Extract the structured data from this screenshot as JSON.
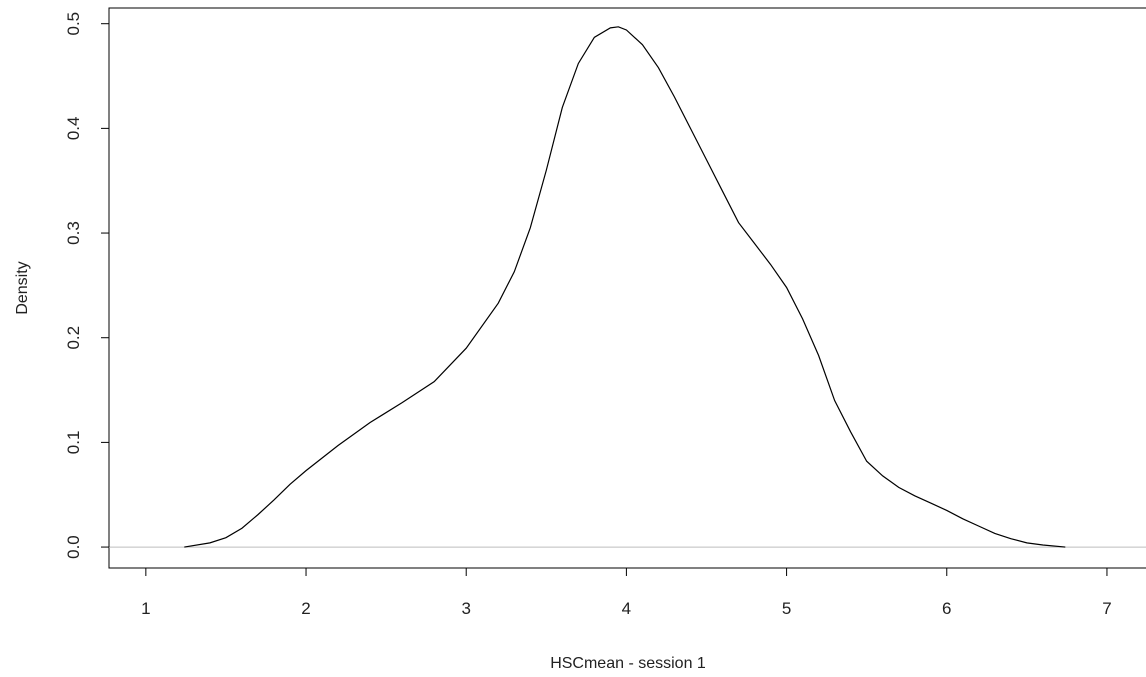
{
  "chart_data": {
    "type": "line",
    "title": "",
    "xlabel": "HSCmean - session 1",
    "ylabel": "Density",
    "xlim": [
      0.77,
      7.25
    ],
    "ylim": [
      -0.02,
      0.515
    ],
    "x_ticks": [
      1,
      2,
      3,
      4,
      5,
      6,
      7
    ],
    "x_tick_labels": [
      "1",
      "2",
      "3",
      "4",
      "5",
      "6",
      "7"
    ],
    "y_ticks": [
      0.0,
      0.1,
      0.2,
      0.3,
      0.4,
      0.5
    ],
    "y_tick_labels": [
      "0.0",
      "0.1",
      "0.2",
      "0.3",
      "0.4",
      "0.5"
    ],
    "grid": false,
    "legend": "none",
    "baseline": {
      "y": 0,
      "color": "#bebebe"
    },
    "line_color": "#000000",
    "series": [
      {
        "x": [
          1.24,
          1.4,
          1.5,
          1.6,
          1.7,
          1.8,
          1.9,
          2.0,
          2.2,
          2.4,
          2.6,
          2.8,
          3.0,
          3.2,
          3.3,
          3.4,
          3.5,
          3.6,
          3.7,
          3.8,
          3.9,
          3.95,
          4.0,
          4.1,
          4.2,
          4.3,
          4.4,
          4.5,
          4.6,
          4.7,
          4.8,
          4.9,
          5.0,
          5.1,
          5.2,
          5.3,
          5.4,
          5.5,
          5.6,
          5.7,
          5.8,
          5.9,
          6.0,
          6.1,
          6.2,
          6.3,
          6.4,
          6.5,
          6.6,
          6.74
        ],
        "y": [
          0.0,
          0.004,
          0.009,
          0.018,
          0.031,
          0.045,
          0.06,
          0.073,
          0.097,
          0.119,
          0.138,
          0.158,
          0.19,
          0.233,
          0.263,
          0.305,
          0.36,
          0.42,
          0.462,
          0.487,
          0.496,
          0.497,
          0.494,
          0.48,
          0.458,
          0.43,
          0.4,
          0.37,
          0.34,
          0.31,
          0.29,
          0.27,
          0.248,
          0.218,
          0.183,
          0.14,
          0.11,
          0.082,
          0.068,
          0.057,
          0.049,
          0.042,
          0.035,
          0.027,
          0.02,
          0.013,
          0.008,
          0.004,
          0.002,
          0.0
        ]
      }
    ]
  }
}
